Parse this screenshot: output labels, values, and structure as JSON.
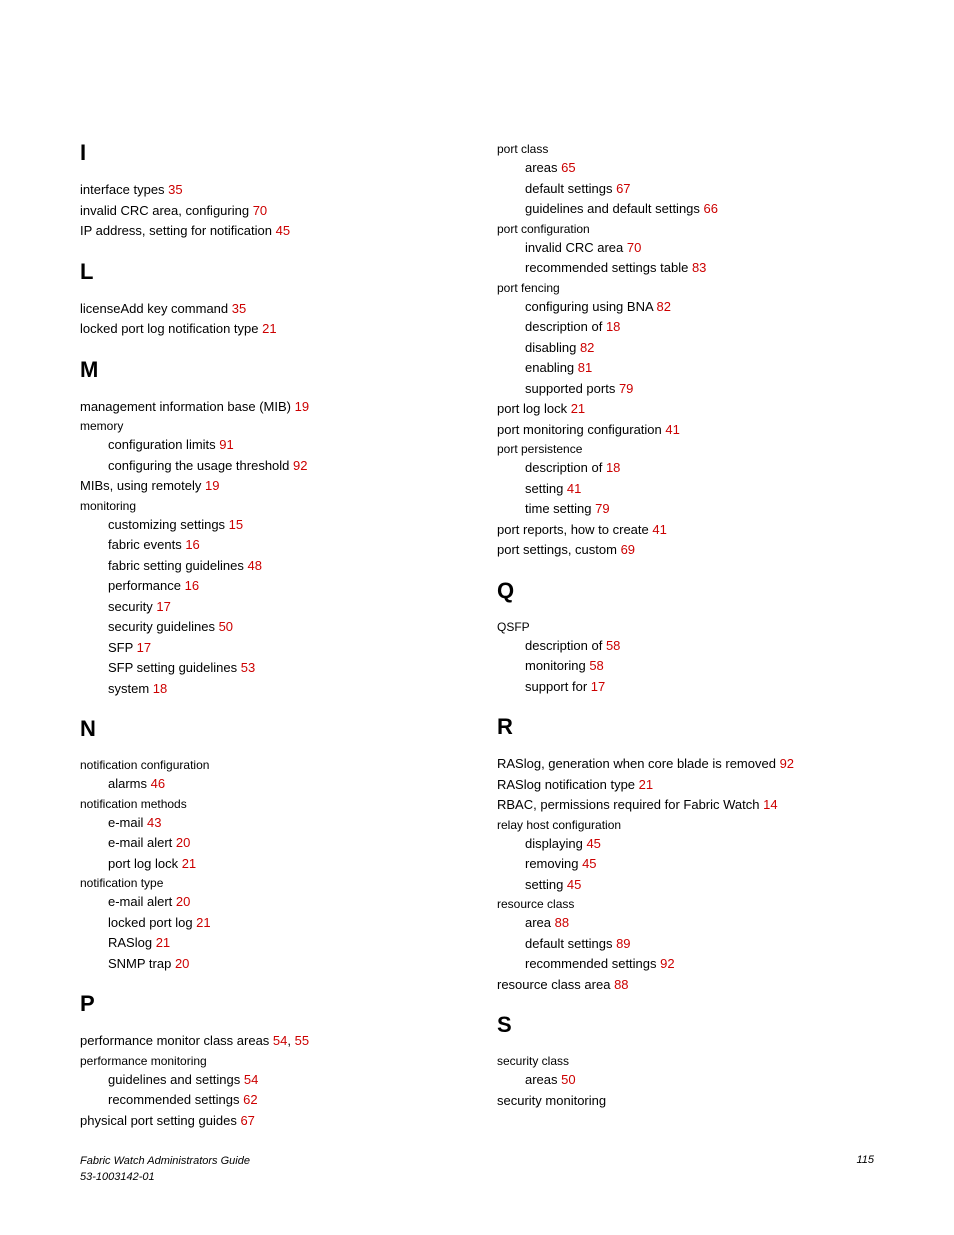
{
  "footer": {
    "title": "Fabric Watch Administrators Guide",
    "docnum": "53-1003142-01",
    "page": "115"
  },
  "link_color": "#cc0000",
  "left": {
    "I": {
      "letter": "I",
      "entries": [
        {
          "t": "interface types ",
          "p": "35"
        },
        {
          "t": "invalid CRC area, configuring ",
          "p": "70"
        },
        {
          "t": "IP address, setting for notification ",
          "p": "45"
        }
      ]
    },
    "L": {
      "letter": "L",
      "entries": [
        {
          "t": "licenseAdd key command ",
          "p": "35"
        },
        {
          "t": "locked port log notification type ",
          "p": "21"
        }
      ]
    },
    "M": {
      "letter": "M",
      "e1": {
        "t": "management information base (MIB) ",
        "p": "19"
      },
      "h1": "memory",
      "s1": {
        "t": "configuration limits ",
        "p": "91"
      },
      "s2": {
        "t": "configuring the usage threshold ",
        "p": "92"
      },
      "e2": {
        "t": "MIBs, using remotely ",
        "p": "19"
      },
      "h2": "monitoring",
      "s3": {
        "t": "customizing settings ",
        "p": "15"
      },
      "s4": {
        "t": "fabric events ",
        "p": "16"
      },
      "s5": {
        "t": "fabric setting guidelines ",
        "p": "48"
      },
      "s6": {
        "t": "performance ",
        "p": "16"
      },
      "s7": {
        "t": "security ",
        "p": "17"
      },
      "s8": {
        "t": "security guidelines ",
        "p": "50"
      },
      "s9": {
        "t": "SFP ",
        "p": "17"
      },
      "s10": {
        "t": "SFP setting guidelines ",
        "p": "53"
      },
      "s11": {
        "t": "system ",
        "p": "18"
      }
    },
    "N": {
      "letter": "N",
      "h1": "notification configuration",
      "s1": {
        "t": "alarms ",
        "p": "46"
      },
      "h2": "notification methods",
      "s2": {
        "t": "e-mail ",
        "p": "43"
      },
      "s3": {
        "t": "e-mail alert ",
        "p": "20"
      },
      "s4": {
        "t": "port log lock ",
        "p": "21"
      },
      "h3": "notification type",
      "s5": {
        "t": "e-mail alert ",
        "p": "20"
      },
      "s6": {
        "t": "locked port log ",
        "p": "21"
      },
      "s7": {
        "t": "RASlog ",
        "p": "21"
      },
      "s8": {
        "t": "SNMP trap ",
        "p": "20"
      }
    },
    "P": {
      "letter": "P",
      "e1": {
        "t": "performance monitor class areas ",
        "p": "54",
        "sep": ", ",
        "p2": "55"
      },
      "h1": "performance monitoring",
      "s1": {
        "t": "guidelines and settings ",
        "p": "54"
      },
      "s2": {
        "t": "recommended settings ",
        "p": "62"
      },
      "e2": {
        "t": "physical port setting guides ",
        "p": "67"
      }
    }
  },
  "right": {
    "Pcont": {
      "h1": "port class",
      "s1": {
        "t": "areas ",
        "p": "65"
      },
      "s2": {
        "t": "default settings ",
        "p": "67"
      },
      "s3": {
        "t": "guidelines and default settings ",
        "p": "66"
      },
      "h2": "port configuration",
      "s4": {
        "t": "invalid CRC area ",
        "p": "70"
      },
      "s5": {
        "t": "recommended settings table ",
        "p": "83"
      },
      "h3": "port fencing",
      "s6": {
        "t": "configuring using BNA ",
        "p": "82"
      },
      "s7": {
        "t": "description of ",
        "p": "18"
      },
      "s8": {
        "t": "disabling ",
        "p": "82"
      },
      "s9": {
        "t": "enabling ",
        "p": "81"
      },
      "s10": {
        "t": "supported ports ",
        "p": "79"
      },
      "e1": {
        "t": "port log lock ",
        "p": "21"
      },
      "e2": {
        "t": "port monitoring configuration ",
        "p": "41"
      },
      "h4": "port persistence",
      "s11": {
        "t": "description of ",
        "p": "18"
      },
      "s12": {
        "t": "setting ",
        "p": "41"
      },
      "s13": {
        "t": "time setting ",
        "p": "79"
      },
      "e3": {
        "t": "port reports, how to create ",
        "p": "41"
      },
      "e4": {
        "t": "port settings, custom ",
        "p": "69"
      }
    },
    "Q": {
      "letter": "Q",
      "h1": "QSFP",
      "s1": {
        "t": "description of ",
        "p": "58"
      },
      "s2": {
        "t": "monitoring ",
        "p": "58"
      },
      "s3": {
        "t": "support for ",
        "p": "17"
      }
    },
    "R": {
      "letter": "R",
      "e1": {
        "t": "RASlog, generation when core blade is removed ",
        "p": "92"
      },
      "e2": {
        "t": "RASlog notification type ",
        "p": "21"
      },
      "e3": {
        "t": "RBAC, permissions required for Fabric Watch ",
        "p": "14"
      },
      "h1": "relay host configuration",
      "s1": {
        "t": "displaying ",
        "p": "45"
      },
      "s2": {
        "t": "removing ",
        "p": "45"
      },
      "s3": {
        "t": "setting ",
        "p": "45"
      },
      "h2": "resource class",
      "s4": {
        "t": "area ",
        "p": "88"
      },
      "s5": {
        "t": "default settings ",
        "p": "89"
      },
      "s6": {
        "t": "recommended settings ",
        "p": "92"
      },
      "e4": {
        "t": "resource class area ",
        "p": "88"
      }
    },
    "S": {
      "letter": "S",
      "h1": "security class",
      "s1": {
        "t": "areas ",
        "p": "50"
      },
      "e1": {
        "t": "security monitoring",
        "p": ""
      }
    }
  }
}
